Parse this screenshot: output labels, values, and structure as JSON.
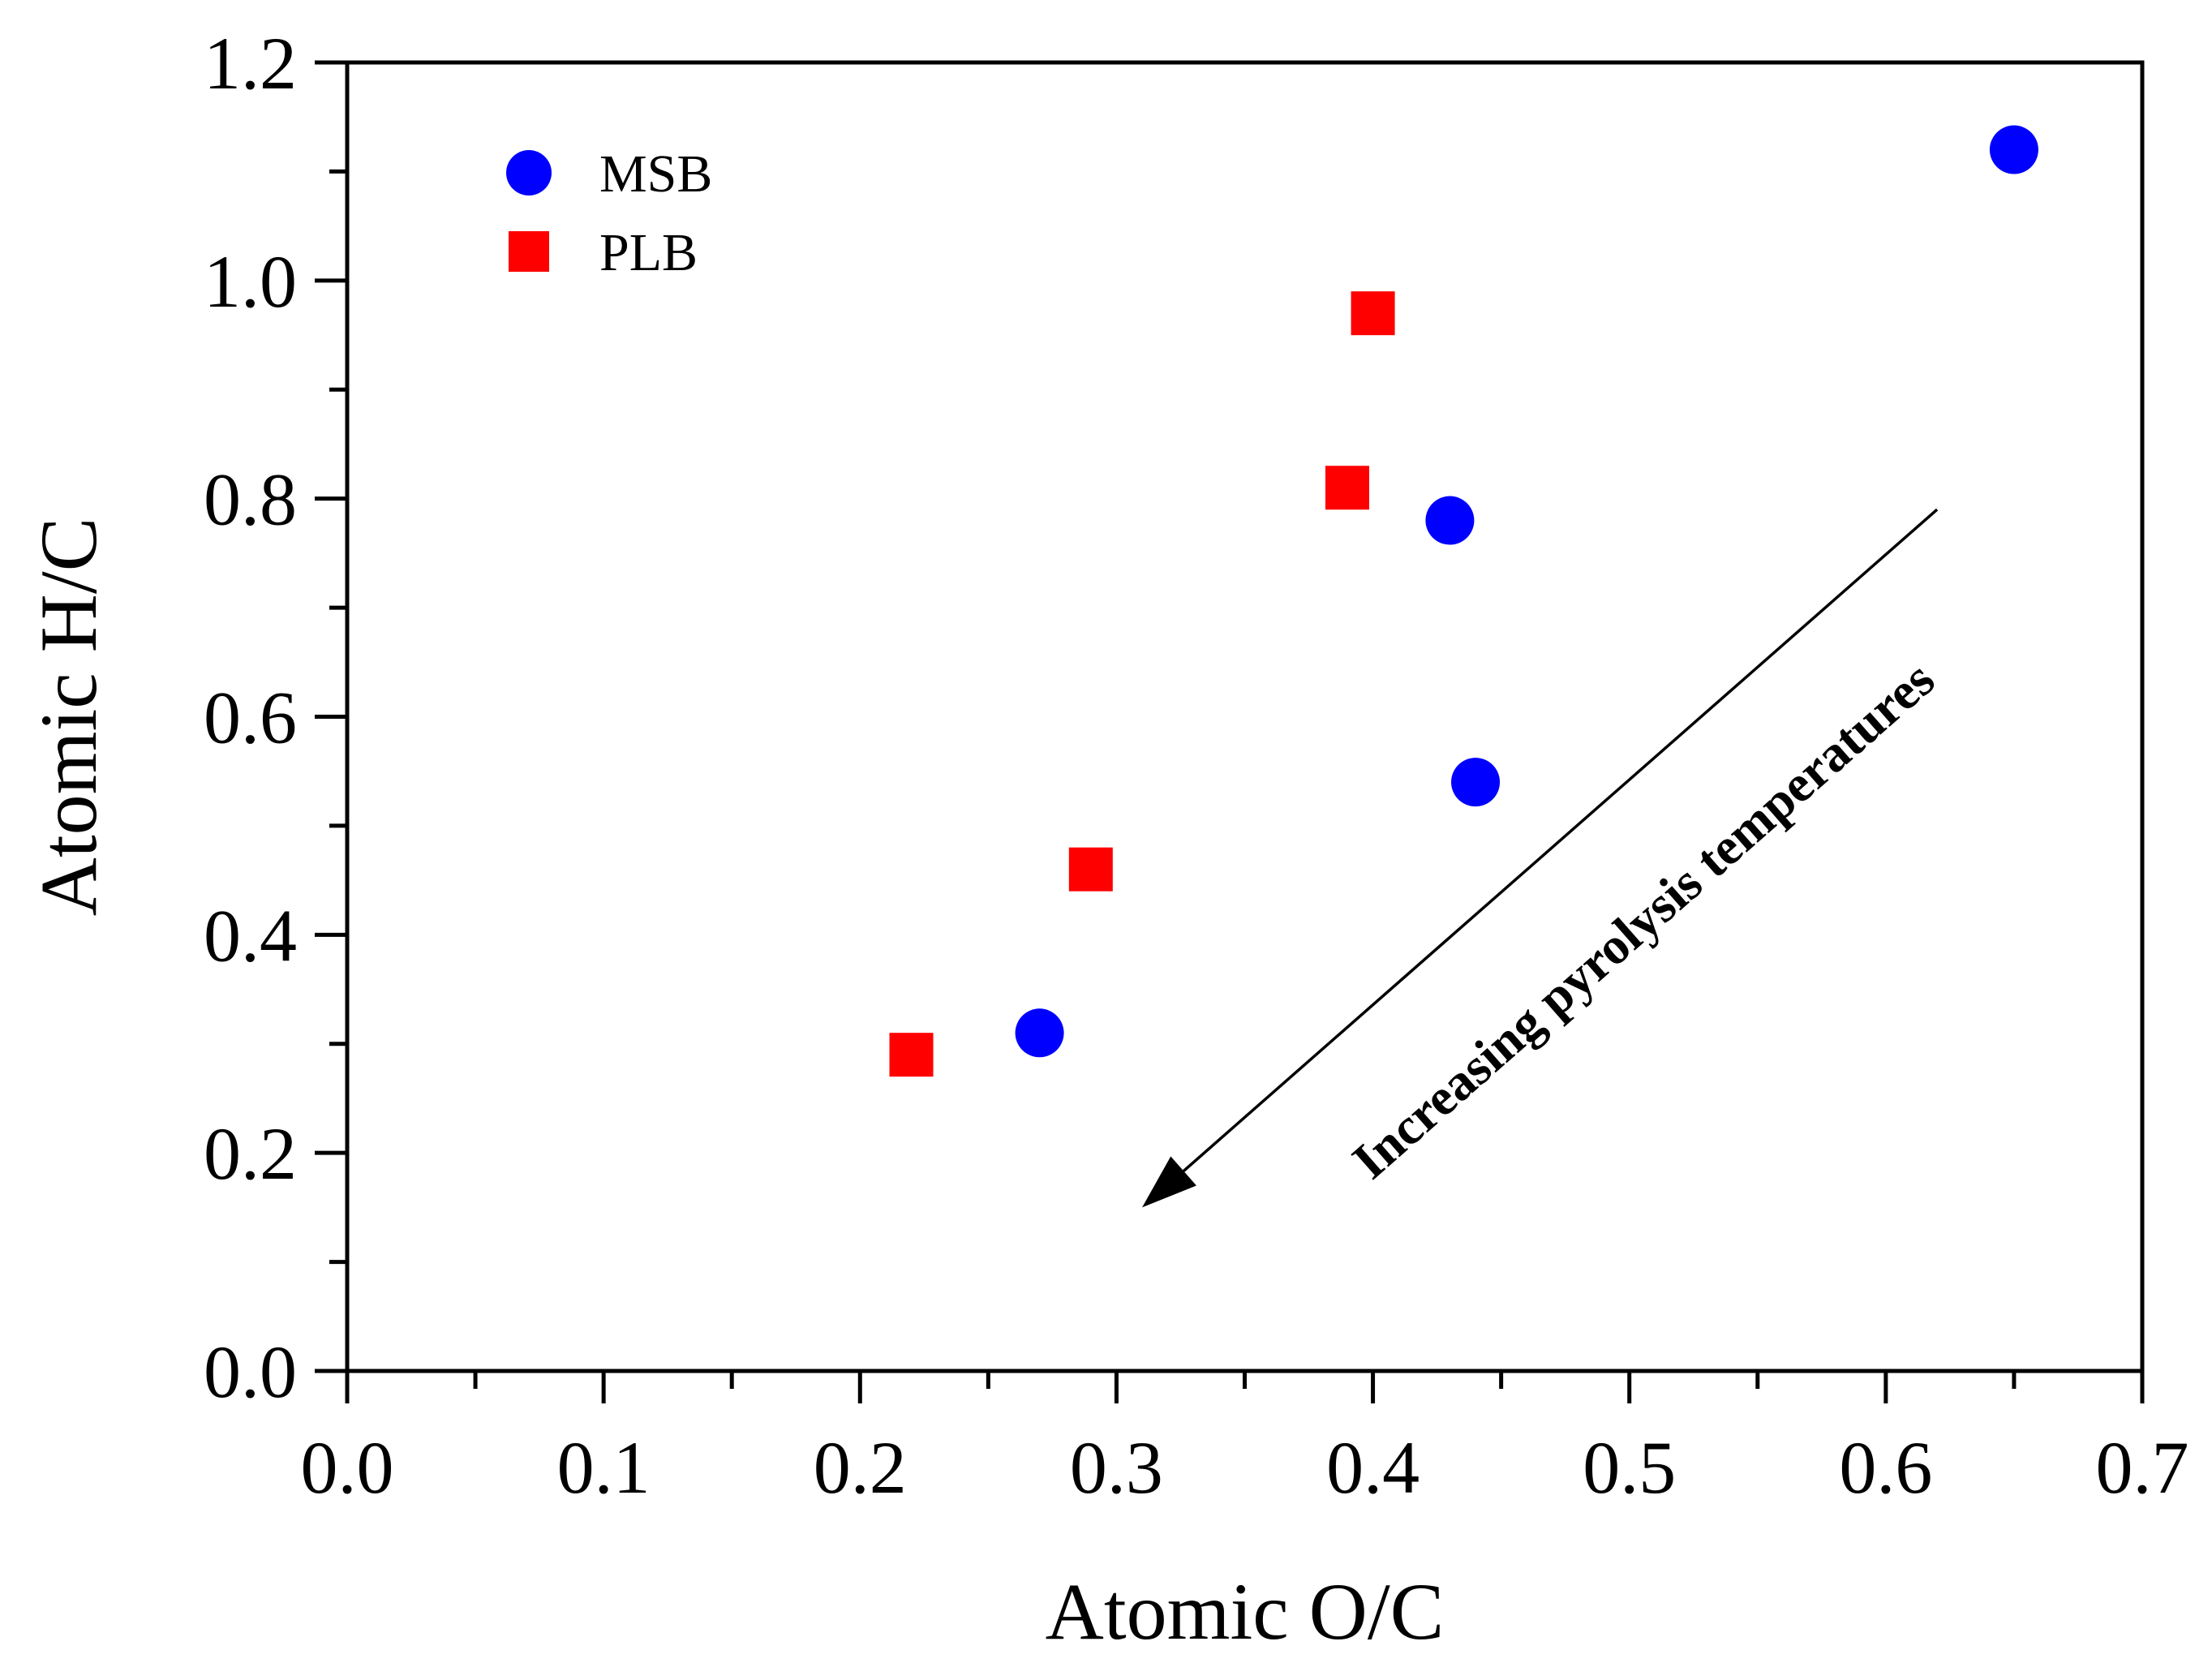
{
  "chart_data": {
    "type": "scatter",
    "title": "",
    "xlabel": "Atomic O/C",
    "ylabel": "Atomic H/C",
    "xlim": [
      0.0,
      0.7
    ],
    "ylim": [
      0.0,
      1.2
    ],
    "x_ticks": [
      "0.0",
      "0.1",
      "0.2",
      "0.3",
      "0.4",
      "0.5",
      "0.6",
      "0.7"
    ],
    "y_ticks": [
      "0.0",
      "0.2",
      "0.4",
      "0.6",
      "0.8",
      "1.0",
      "1.2"
    ],
    "grid": false,
    "legend_position": "top-left",
    "series": [
      {
        "name": "MSB",
        "marker": "circle",
        "color": "#0000ff",
        "points": [
          {
            "x": 0.65,
            "y": 1.12
          },
          {
            "x": 0.43,
            "y": 0.78
          },
          {
            "x": 0.44,
            "y": 0.54
          },
          {
            "x": 0.27,
            "y": 0.31
          }
        ]
      },
      {
        "name": "PLB",
        "marker": "square",
        "color": "#ff0000",
        "points": [
          {
            "x": 0.4,
            "y": 0.97
          },
          {
            "x": 0.39,
            "y": 0.81
          },
          {
            "x": 0.29,
            "y": 0.46
          },
          {
            "x": 0.22,
            "y": 0.29
          }
        ]
      }
    ],
    "annotation": {
      "text": "Increasing pyrolysis temperatures",
      "arrow_from": {
        "x": 0.62,
        "y": 0.79
      },
      "arrow_to": {
        "x": 0.31,
        "y": 0.15
      }
    }
  }
}
